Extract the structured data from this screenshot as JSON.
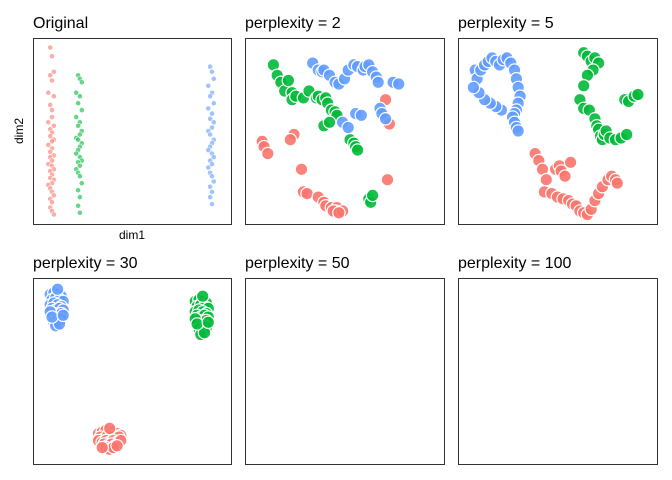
{
  "chart_data": [
    {
      "type": "scatter",
      "title": "Original",
      "xlabel": "dim1",
      "ylabel": "dim2",
      "marker": "small",
      "opacity": 0.6,
      "series": [
        {
          "color": "#F8766D",
          "x": [
            0.06,
            0.07,
            0.08,
            0.06,
            0.07,
            0.05,
            0.08,
            0.06,
            0.07,
            0.07,
            0.05,
            0.08,
            0.06,
            0.07,
            0.06,
            0.08,
            0.07,
            0.05,
            0.07,
            0.06,
            0.08,
            0.06,
            0.07,
            0.05,
            0.07,
            0.08,
            0.06,
            0.07,
            0.06,
            0.08,
            0.07,
            0.05,
            0.06,
            0.07,
            0.08,
            0.06,
            0.07,
            0.06,
            0.07,
            0.08
          ],
          "y": [
            0.98,
            0.93,
            0.84,
            0.82,
            0.79,
            0.72,
            0.7,
            0.65,
            0.62,
            0.58,
            0.55,
            0.53,
            0.51,
            0.49,
            0.47,
            0.45,
            0.44,
            0.42,
            0.4,
            0.38,
            0.36,
            0.35,
            0.33,
            0.31,
            0.3,
            0.28,
            0.27,
            0.25,
            0.23,
            0.22,
            0.2,
            0.19,
            0.17,
            0.15,
            0.13,
            0.11,
            0.09,
            0.06,
            0.04,
            0.02
          ]
        },
        {
          "color": "#00BA38",
          "x": [
            0.21,
            0.22,
            0.23,
            0.2,
            0.22,
            0.21,
            0.23,
            0.2,
            0.22,
            0.21,
            0.23,
            0.22,
            0.2,
            0.21,
            0.23,
            0.22,
            0.21,
            0.2,
            0.22,
            0.23,
            0.21,
            0.22,
            0.2,
            0.21,
            0.22,
            0.23,
            0.21,
            0.22,
            0.21,
            0.22
          ],
          "y": [
            0.82,
            0.8,
            0.78,
            0.72,
            0.7,
            0.66,
            0.62,
            0.58,
            0.55,
            0.53,
            0.5,
            0.48,
            0.46,
            0.45,
            0.43,
            0.41,
            0.39,
            0.37,
            0.35,
            0.33,
            0.32,
            0.3,
            0.28,
            0.26,
            0.24,
            0.2,
            0.16,
            0.12,
            0.07,
            0.03
          ]
        },
        {
          "color": "#619CFF",
          "x": [
            0.92,
            0.93,
            0.94,
            0.91,
            0.93,
            0.92,
            0.94,
            0.91,
            0.93,
            0.92,
            0.94,
            0.93,
            0.91,
            0.92,
            0.94,
            0.93,
            0.92,
            0.91,
            0.93,
            0.94,
            0.92,
            0.93,
            0.91,
            0.92,
            0.93,
            0.94,
            0.92,
            0.93,
            0.92,
            0.93
          ],
          "y": [
            0.87,
            0.84,
            0.8,
            0.76,
            0.72,
            0.7,
            0.66,
            0.63,
            0.6,
            0.57,
            0.55,
            0.52,
            0.5,
            0.48,
            0.45,
            0.43,
            0.41,
            0.39,
            0.37,
            0.35,
            0.33,
            0.31,
            0.29,
            0.26,
            0.24,
            0.21,
            0.18,
            0.15,
            0.12,
            0.08
          ]
        }
      ]
    },
    {
      "type": "scatter",
      "title": "perplexity = 2",
      "marker": "large",
      "opacity": 0.9,
      "series": [
        {
          "color": "#F8766D",
          "x": [
            0.06,
            0.07,
            0.09,
            0.23,
            0.21,
            0.27,
            0.28,
            0.3,
            0.36,
            0.39,
            0.4,
            0.43,
            0.44,
            0.46,
            0.45,
            0.44,
            0.49,
            0.47,
            0.72,
            0.74,
            0.73
          ],
          "y": [
            0.44,
            0.41,
            0.37,
            0.48,
            0.45,
            0.28,
            0.15,
            0.14,
            0.12,
            0.09,
            0.07,
            0.06,
            0.04,
            0.06,
            0.04,
            0.04,
            0.04,
            0.03,
            0.68,
            0.54,
            0.22
          ]
        },
        {
          "color": "#00BA38",
          "x": [
            0.12,
            0.14,
            0.16,
            0.18,
            0.2,
            0.22,
            0.22,
            0.24,
            0.28,
            0.31,
            0.35,
            0.36,
            0.38,
            0.4,
            0.41,
            0.43,
            0.45,
            0.46,
            0.39,
            0.42,
            0.53,
            0.55,
            0.56,
            0.57,
            0.63,
            0.64,
            0.65
          ],
          "y": [
            0.88,
            0.82,
            0.78,
            0.73,
            0.79,
            0.72,
            0.68,
            0.7,
            0.69,
            0.73,
            0.69,
            0.7,
            0.68,
            0.69,
            0.66,
            0.62,
            0.61,
            0.59,
            0.53,
            0.55,
            0.45,
            0.43,
            0.41,
            0.39,
            0.11,
            0.09,
            0.13
          ]
        },
        {
          "color": "#619CFF",
          "x": [
            0.33,
            0.36,
            0.38,
            0.39,
            0.42,
            0.45,
            0.47,
            0.5,
            0.52,
            0.55,
            0.57,
            0.6,
            0.61,
            0.63,
            0.65,
            0.67,
            0.68,
            0.69,
            0.7,
            0.72,
            0.56,
            0.59,
            0.49,
            0.52,
            0.76,
            0.79
          ],
          "y": [
            0.89,
            0.85,
            0.84,
            0.85,
            0.82,
            0.78,
            0.77,
            0.8,
            0.85,
            0.88,
            0.87,
            0.85,
            0.87,
            0.88,
            0.84,
            0.81,
            0.78,
            0.63,
            0.6,
            0.57,
            0.6,
            0.59,
            0.55,
            0.52,
            0.78,
            0.77
          ]
        }
      ]
    },
    {
      "type": "scatter",
      "title": "perplexity = 5",
      "marker": "large",
      "opacity": 0.9,
      "series": [
        {
          "color": "#F8766D",
          "x": [
            0.38,
            0.4,
            0.42,
            0.44,
            0.43,
            0.47,
            0.5,
            0.53,
            0.56,
            0.58,
            0.6,
            0.62,
            0.64,
            0.66,
            0.68,
            0.7,
            0.72,
            0.74,
            0.77,
            0.79,
            0.81,
            0.82,
            0.49,
            0.51,
            0.52,
            0.54,
            0.57
          ],
          "y": [
            0.37,
            0.33,
            0.28,
            0.22,
            0.15,
            0.14,
            0.12,
            0.11,
            0.1,
            0.08,
            0.07,
            0.04,
            0.03,
            0.02,
            0.05,
            0.1,
            0.14,
            0.18,
            0.22,
            0.24,
            0.22,
            0.2,
            0.28,
            0.3,
            0.27,
            0.24,
            0.32
          ]
        },
        {
          "color": "#00BA38",
          "x": [
            0.64,
            0.66,
            0.68,
            0.7,
            0.72,
            0.69,
            0.66,
            0.64,
            0.62,
            0.64,
            0.67,
            0.7,
            0.71,
            0.72,
            0.73,
            0.74,
            0.75,
            0.76,
            0.78,
            0.81,
            0.84,
            0.87,
            0.86,
            0.88,
            0.91,
            0.93
          ],
          "y": [
            0.95,
            0.93,
            0.9,
            0.92,
            0.89,
            0.85,
            0.82,
            0.76,
            0.68,
            0.63,
            0.62,
            0.57,
            0.53,
            0.51,
            0.47,
            0.45,
            0.48,
            0.5,
            0.46,
            0.45,
            0.46,
            0.48,
            0.68,
            0.67,
            0.7,
            0.71
          ]
        },
        {
          "color": "#619CFF",
          "x": [
            0.06,
            0.07,
            0.09,
            0.11,
            0.13,
            0.15,
            0.17,
            0.19,
            0.21,
            0.23,
            0.25,
            0.27,
            0.28,
            0.29,
            0.3,
            0.29,
            0.28,
            0.27,
            0.26,
            0.27,
            0.28,
            0.29,
            0.2,
            0.17,
            0.14,
            0.11,
            0.08,
            0.05
          ],
          "y": [
            0.85,
            0.8,
            0.85,
            0.88,
            0.9,
            0.92,
            0.9,
            0.88,
            0.91,
            0.92,
            0.89,
            0.85,
            0.8,
            0.75,
            0.7,
            0.66,
            0.62,
            0.6,
            0.58,
            0.55,
            0.52,
            0.5,
            0.62,
            0.64,
            0.66,
            0.68,
            0.72,
            0.75
          ]
        }
      ]
    },
    {
      "type": "scatter",
      "title": "perplexity = 30",
      "marker": "large",
      "opacity": 0.9,
      "series": [
        {
          "color": "#F8766D",
          "x": [
            0.32,
            0.34,
            0.36,
            0.38,
            0.4,
            0.42,
            0.44,
            0.33,
            0.35,
            0.37,
            0.39,
            0.41,
            0.43,
            0.32,
            0.34,
            0.36,
            0.38,
            0.4,
            0.42,
            0.44,
            0.35,
            0.37,
            0.39,
            0.41,
            0.36,
            0.38,
            0.4,
            0.34,
            0.42,
            0.38
          ],
          "y": [
            0.14,
            0.15,
            0.16,
            0.14,
            0.15,
            0.14,
            0.13,
            0.12,
            0.11,
            0.13,
            0.12,
            0.11,
            0.12,
            0.1,
            0.09,
            0.1,
            0.09,
            0.1,
            0.09,
            0.1,
            0.08,
            0.07,
            0.08,
            0.07,
            0.06,
            0.05,
            0.06,
            0.06,
            0.07,
            0.17
          ]
        },
        {
          "color": "#00BA38",
          "x": [
            0.84,
            0.86,
            0.88,
            0.9,
            0.85,
            0.87,
            0.89,
            0.91,
            0.84,
            0.86,
            0.88,
            0.9,
            0.85,
            0.87,
            0.89,
            0.91,
            0.86,
            0.88,
            0.9,
            0.84,
            0.87,
            0.89,
            0.86,
            0.88,
            0.9,
            0.87,
            0.89,
            0.85,
            0.91,
            0.88
          ],
          "y": [
            0.9,
            0.91,
            0.9,
            0.89,
            0.87,
            0.88,
            0.87,
            0.86,
            0.84,
            0.85,
            0.84,
            0.83,
            0.82,
            0.81,
            0.82,
            0.81,
            0.79,
            0.78,
            0.79,
            0.8,
            0.76,
            0.76,
            0.74,
            0.73,
            0.75,
            0.71,
            0.72,
            0.77,
            0.78,
            0.93
          ]
        },
        {
          "color": "#619CFF",
          "x": [
            0.06,
            0.08,
            0.1,
            0.12,
            0.07,
            0.09,
            0.11,
            0.13,
            0.06,
            0.08,
            0.1,
            0.12,
            0.07,
            0.09,
            0.11,
            0.13,
            0.08,
            0.1,
            0.12,
            0.06,
            0.09,
            0.11,
            0.08,
            0.1,
            0.12,
            0.09,
            0.11,
            0.07,
            0.13,
            0.1
          ],
          "y": [
            0.94,
            0.95,
            0.94,
            0.93,
            0.91,
            0.92,
            0.91,
            0.9,
            0.88,
            0.89,
            0.88,
            0.87,
            0.86,
            0.85,
            0.86,
            0.85,
            0.83,
            0.82,
            0.83,
            0.84,
            0.8,
            0.8,
            0.78,
            0.79,
            0.8,
            0.76,
            0.77,
            0.81,
            0.82,
            0.97
          ]
        }
      ]
    },
    {
      "type": "scatter",
      "title": "perplexity = 50",
      "series": []
    },
    {
      "type": "scatter",
      "title": "perplexity = 100",
      "series": []
    }
  ]
}
